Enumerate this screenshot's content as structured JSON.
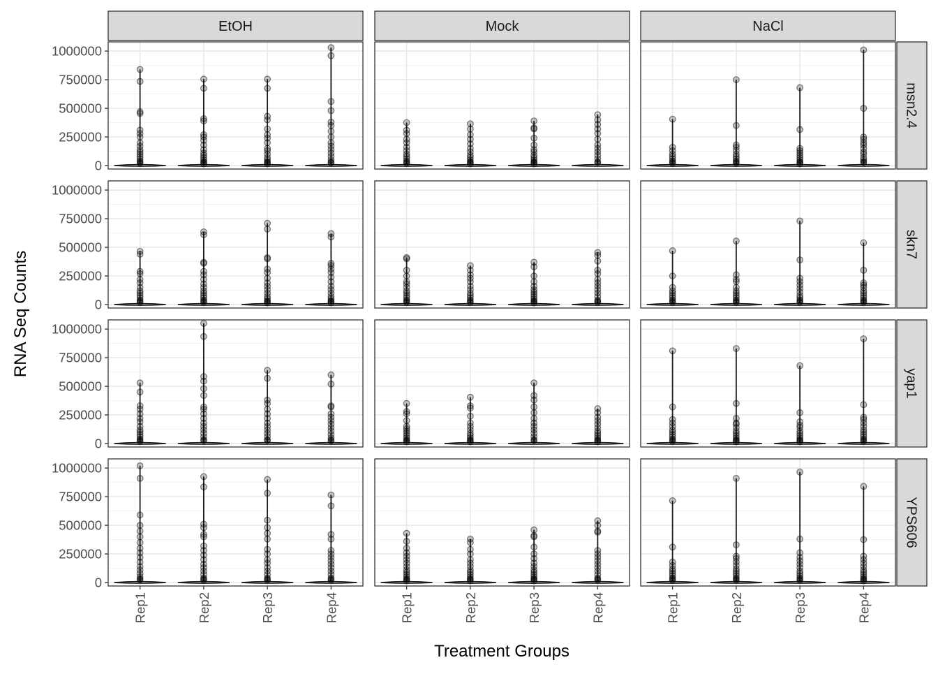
{
  "chart_data": {
    "type": "violin",
    "xlabel": "Treatment Groups",
    "ylabel": "RNA Seq Counts",
    "col_strips": [
      "EtOH",
      "Mock",
      "NaCl"
    ],
    "row_strips": [
      "msn2.4",
      "skn7",
      "yap1",
      "YPS606"
    ],
    "categories": [
      "Rep1",
      "Rep2",
      "Rep3",
      "Rep4"
    ],
    "y_ticks": [
      0,
      250000,
      500000,
      750000,
      1000000
    ],
    "y_tick_labels": [
      "0",
      "250000",
      "500000",
      "750000",
      "1000000"
    ],
    "ylim": [
      -30000,
      1080000
    ],
    "legend": "none",
    "grid": true,
    "outlier_color": "#000000",
    "panels": [
      {
        "row": "msn2.4",
        "col": "EtOH",
        "outliers": [
          [
            840000,
            735000,
            470000,
            455000,
            310000,
            280000,
            250000,
            200000,
            170000,
            140000,
            120000,
            100000,
            80000,
            60000,
            40000,
            20000
          ],
          [
            755000,
            675000,
            410000,
            390000,
            270000,
            250000,
            220000,
            180000,
            140000,
            110000,
            90000,
            70000,
            50000,
            30000,
            15000
          ],
          [
            755000,
            675000,
            430000,
            400000,
            320000,
            270000,
            240000,
            200000,
            150000,
            130000,
            100000,
            70000,
            50000,
            30000,
            15000
          ],
          [
            1030000,
            960000,
            560000,
            480000,
            380000,
            350000,
            300000,
            250000,
            200000,
            170000,
            140000,
            110000,
            80000,
            50000,
            25000
          ]
        ]
      },
      {
        "row": "msn2.4",
        "col": "Mock",
        "outliers": [
          [
            375000,
            310000,
            280000,
            230000,
            200000,
            160000,
            130000,
            100000,
            80000,
            60000,
            40000,
            20000
          ],
          [
            365000,
            320000,
            270000,
            230000,
            190000,
            150000,
            120000,
            90000,
            70000,
            50000,
            30000,
            15000
          ],
          [
            390000,
            330000,
            320000,
            240000,
            180000,
            140000,
            120000,
            90000,
            70000,
            50000,
            30000,
            15000
          ],
          [
            445000,
            400000,
            360000,
            320000,
            280000,
            230000,
            180000,
            150000,
            120000,
            90000,
            60000,
            30000
          ]
        ]
      },
      {
        "row": "msn2.4",
        "col": "NaCl",
        "outliers": [
          [
            405000,
            160000,
            130000,
            100000,
            80000,
            60000,
            40000,
            20000
          ],
          [
            750000,
            350000,
            180000,
            160000,
            130000,
            100000,
            80000,
            60000,
            40000,
            20000
          ],
          [
            680000,
            315000,
            150000,
            130000,
            110000,
            90000,
            70000,
            50000,
            30000,
            15000
          ],
          [
            1010000,
            500000,
            250000,
            230000,
            200000,
            180000,
            150000,
            120000,
            100000,
            70000,
            50000,
            30000
          ]
        ]
      },
      {
        "row": "skn7",
        "col": "EtOH",
        "outliers": [
          [
            465000,
            440000,
            290000,
            270000,
            220000,
            190000,
            150000,
            120000,
            100000,
            80000,
            60000,
            40000,
            20000
          ],
          [
            635000,
            610000,
            370000,
            360000,
            290000,
            260000,
            220000,
            180000,
            150000,
            120000,
            100000,
            80000,
            60000,
            40000,
            20000
          ],
          [
            710000,
            660000,
            410000,
            400000,
            310000,
            280000,
            230000,
            190000,
            160000,
            130000,
            100000,
            70000,
            50000,
            30000,
            15000
          ],
          [
            620000,
            590000,
            360000,
            340000,
            310000,
            280000,
            240000,
            200000,
            160000,
            130000,
            100000,
            70000,
            50000,
            30000,
            15000
          ]
        ]
      },
      {
        "row": "skn7",
        "col": "Mock",
        "outliers": [
          [
            410000,
            400000,
            300000,
            250000,
            200000,
            180000,
            150000,
            120000,
            100000,
            80000,
            60000,
            40000,
            20000
          ],
          [
            340000,
            300000,
            260000,
            230000,
            200000,
            160000,
            130000,
            100000,
            80000,
            60000,
            40000,
            20000
          ],
          [
            370000,
            330000,
            250000,
            200000,
            160000,
            130000,
            110000,
            90000,
            70000,
            50000,
            30000,
            15000
          ],
          [
            455000,
            430000,
            380000,
            300000,
            270000,
            220000,
            190000,
            160000,
            130000,
            100000,
            70000,
            40000,
            20000
          ]
        ]
      },
      {
        "row": "skn7",
        "col": "NaCl",
        "outliers": [
          [
            470000,
            250000,
            150000,
            120000,
            100000,
            80000,
            60000,
            40000,
            20000
          ],
          [
            555000,
            260000,
            220000,
            200000,
            150000,
            120000,
            100000,
            80000,
            60000,
            40000,
            20000
          ],
          [
            730000,
            390000,
            230000,
            200000,
            170000,
            140000,
            110000,
            80000,
            60000,
            40000,
            20000
          ],
          [
            540000,
            300000,
            190000,
            170000,
            150000,
            120000,
            100000,
            80000,
            60000,
            40000,
            20000
          ]
        ]
      },
      {
        "row": "yap1",
        "col": "EtOH",
        "outliers": [
          [
            530000,
            450000,
            330000,
            300000,
            260000,
            220000,
            190000,
            150000,
            120000,
            100000,
            80000,
            60000,
            40000,
            20000
          ],
          [
            1050000,
            935000,
            585000,
            545000,
            480000,
            420000,
            320000,
            300000,
            260000,
            220000,
            180000,
            150000,
            120000,
            90000,
            60000,
            30000
          ],
          [
            640000,
            570000,
            380000,
            350000,
            300000,
            260000,
            220000,
            180000,
            150000,
            120000,
            90000,
            60000,
            30000
          ],
          [
            600000,
            520000,
            330000,
            320000,
            260000,
            230000,
            200000,
            170000,
            140000,
            110000,
            80000,
            50000,
            25000
          ]
        ]
      },
      {
        "row": "yap1",
        "col": "Mock",
        "outliers": [
          [
            350000,
            280000,
            260000,
            200000,
            150000,
            130000,
            110000,
            90000,
            70000,
            50000,
            30000,
            15000
          ],
          [
            405000,
            330000,
            310000,
            240000,
            180000,
            150000,
            120000,
            90000,
            70000,
            50000,
            30000,
            15000
          ],
          [
            530000,
            420000,
            380000,
            320000,
            270000,
            220000,
            180000,
            150000,
            120000,
            90000,
            60000,
            30000
          ],
          [
            305000,
            270000,
            230000,
            200000,
            170000,
            140000,
            110000,
            90000,
            70000,
            50000,
            30000,
            15000
          ]
        ]
      },
      {
        "row": "yap1",
        "col": "NaCl",
        "outliers": [
          [
            810000,
            320000,
            210000,
            180000,
            150000,
            120000,
            100000,
            80000,
            60000,
            40000,
            20000
          ],
          [
            830000,
            350000,
            220000,
            180000,
            170000,
            140000,
            110000,
            90000,
            70000,
            50000,
            30000,
            15000
          ],
          [
            680000,
            270000,
            190000,
            160000,
            140000,
            110000,
            90000,
            70000,
            50000,
            30000,
            15000
          ],
          [
            915000,
            340000,
            230000,
            210000,
            180000,
            150000,
            120000,
            100000,
            80000,
            60000,
            40000,
            20000
          ]
        ]
      },
      {
        "row": "YPS606",
        "col": "EtOH",
        "outliers": [
          [
            1020000,
            910000,
            590000,
            500000,
            450000,
            400000,
            350000,
            300000,
            260000,
            220000,
            180000,
            140000,
            110000,
            80000,
            50000,
            25000
          ],
          [
            925000,
            835000,
            510000,
            480000,
            420000,
            400000,
            320000,
            280000,
            240000,
            200000,
            160000,
            130000,
            100000,
            70000,
            40000,
            20000
          ],
          [
            900000,
            780000,
            545000,
            480000,
            430000,
            380000,
            290000,
            250000,
            200000,
            170000,
            130000,
            100000,
            70000,
            40000,
            20000
          ],
          [
            765000,
            670000,
            420000,
            380000,
            280000,
            250000,
            220000,
            190000,
            160000,
            130000,
            100000,
            70000,
            40000,
            20000
          ]
        ]
      },
      {
        "row": "YPS606",
        "col": "Mock",
        "outliers": [
          [
            430000,
            360000,
            300000,
            260000,
            230000,
            200000,
            170000,
            140000,
            110000,
            90000,
            70000,
            50000,
            30000,
            15000
          ],
          [
            380000,
            350000,
            290000,
            250000,
            200000,
            170000,
            140000,
            110000,
            90000,
            70000,
            50000,
            30000,
            15000
          ],
          [
            460000,
            410000,
            400000,
            310000,
            250000,
            210000,
            170000,
            140000,
            110000,
            90000,
            70000,
            50000,
            30000,
            15000
          ],
          [
            540000,
            500000,
            450000,
            440000,
            280000,
            250000,
            220000,
            190000,
            160000,
            130000,
            100000,
            70000,
            40000,
            20000
          ]
        ]
      },
      {
        "row": "YPS606",
        "col": "NaCl",
        "outliers": [
          [
            715000,
            310000,
            180000,
            150000,
            120000,
            100000,
            80000,
            60000,
            40000,
            20000
          ],
          [
            910000,
            330000,
            230000,
            210000,
            180000,
            150000,
            120000,
            100000,
            80000,
            60000,
            40000,
            20000
          ],
          [
            965000,
            380000,
            260000,
            220000,
            190000,
            160000,
            130000,
            100000,
            80000,
            60000,
            40000,
            20000
          ],
          [
            840000,
            375000,
            230000,
            200000,
            170000,
            140000,
            110000,
            90000,
            70000,
            50000,
            30000,
            15000
          ]
        ]
      }
    ]
  }
}
